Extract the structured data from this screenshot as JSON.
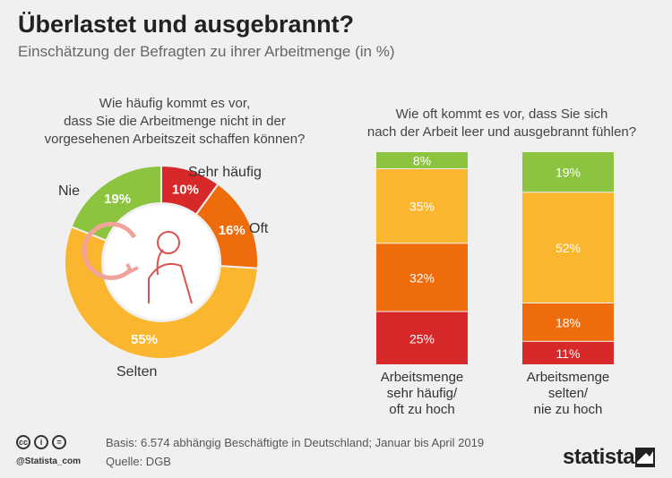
{
  "header": {
    "title": "Überlastet und ausgebrannt?",
    "subtitle": "Einschätzung der Befragten zu ihrer Arbeitmenge (in %)"
  },
  "chart_data": [
    {
      "type": "pie",
      "variant": "donut",
      "title": "Wie häufig kommt es vor,\ndass Sie die Arbeitmenge nicht in der\nvorgesehenen Arbeitszeit schaffen können?",
      "slices": [
        {
          "label": "Sehr häufig",
          "value": 10,
          "value_label": "10%",
          "color": "#d7282a"
        },
        {
          "label": "Oft",
          "value": 16,
          "value_label": "16%",
          "color": "#ef6c0c"
        },
        {
          "label": "Selten",
          "value": 55,
          "value_label": "55%",
          "color": "#fbb62f"
        },
        {
          "label": "Nie",
          "value": 19,
          "value_label": "19%",
          "color": "#8cc43f"
        }
      ]
    },
    {
      "type": "bar",
      "variant": "stacked-100",
      "title": "Wie oft kommt es vor, dass Sie sich\nnach der Arbeit leer und ausgebrannt fühlen?",
      "categories": [
        "Arbeitsmenge\nsehr häufig/\noft zu hoch",
        "Arbeitsmenge\nselten/\nnie zu hoch"
      ],
      "series": [
        {
          "values": [
            8,
            19
          ],
          "value_labels": [
            "8%",
            "19%"
          ],
          "color": "#8cc43f"
        },
        {
          "values": [
            35,
            52
          ],
          "value_labels": [
            "35%",
            "52%"
          ],
          "color": "#fbb62f"
        },
        {
          "values": [
            32,
            18
          ],
          "value_labels": [
            "32%",
            "18%"
          ],
          "color": "#ef6c0c"
        },
        {
          "values": [
            25,
            11
          ],
          "value_labels": [
            "25%",
            "11%"
          ],
          "color": "#d7282a"
        }
      ]
    }
  ],
  "footer": {
    "basis": "Basis: 6.574 abhängig Beschäftigte in Deutschland; Januar bis April 2019",
    "quelle": "Quelle: DGB",
    "handle": "@Statista_com",
    "brand": "statista",
    "license_icons": [
      "cc-icon",
      "by-icon",
      "equal-icon"
    ]
  }
}
